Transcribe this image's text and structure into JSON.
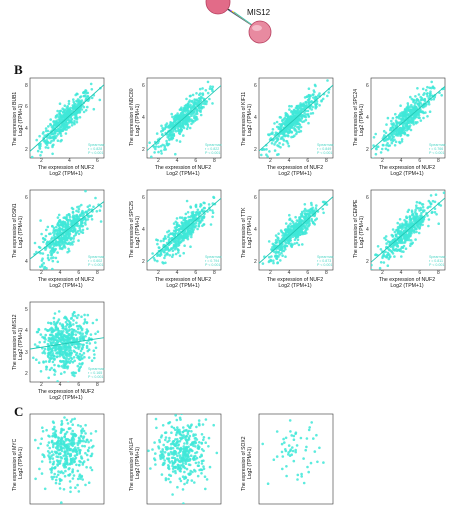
{
  "network": {
    "node_label": "MIS12",
    "edge_colors": [
      "#e040c0",
      "#00a0ff",
      "#60d040",
      "#202020",
      "#a040ff",
      "#ffe000",
      "#40c0c0"
    ]
  },
  "panel_b_letter": "B",
  "panel_c_letter": "C",
  "colors": {
    "points": "#3fe8d8",
    "fit": "#21c7b4",
    "axis": "#333333"
  },
  "plots_b": [
    {
      "id": "NUF2-BUB1",
      "ylabel1": "The expression of BUB1",
      "ylabel2": "Log2 (TPM+1)",
      "xlabel1": "The expression of NUF2",
      "xlabel2": "Log2 (TPM+1)",
      "yticks": [
        "2",
        "4",
        "6",
        "8"
      ],
      "xticks": [
        "2",
        "4",
        "6"
      ],
      "stat_lines": [
        "Spearman",
        "r = 0.828",
        "P < 0.001"
      ]
    },
    {
      "id": "NUF2-NDC80",
      "ylabel1": "The expression of NDC80",
      "ylabel2": "Log2 (TPM+1)",
      "xlabel1": "The expression of NUF2",
      "xlabel2": "Log2 (TPM+1)",
      "yticks": [
        "2",
        "4",
        "6"
      ],
      "xticks": [
        "2",
        "4",
        "6",
        "8"
      ],
      "stat_lines": [
        "Spearman",
        "r = 0.822",
        "P < 0.001"
      ]
    },
    {
      "id": "NUF2-KIF11",
      "ylabel1": "The expression of KIF11",
      "ylabel2": "Log2 (TPM+1)",
      "xlabel1": "The expression of NUF2",
      "xlabel2": "Log2 (TPM+1)",
      "yticks": [
        "2",
        "4",
        "6"
      ],
      "xticks": [
        "2",
        "4",
        "6",
        "8"
      ],
      "stat_lines": [
        "Spearman",
        "r = 0.849",
        "P < 0.001"
      ]
    },
    {
      "id": "NUF2-SPC24",
      "ylabel1": "The expression of SPC24",
      "ylabel2": "Log2 (TPM+1)",
      "xlabel1": "The expression of NUF2",
      "xlabel2": "Log2 (TPM+1)",
      "yticks": [
        "2",
        "4",
        "6"
      ],
      "xticks": [
        "2",
        "4",
        "6",
        "8"
      ],
      "stat_lines": [
        "Spearman",
        "r = 0.766",
        "P < 0.001"
      ]
    },
    {
      "id": "NUF2-DSN1",
      "ylabel1": "The expression of DSN1",
      "ylabel2": "Log2 (TPM+1)",
      "xlabel1": "The expression of NUF2",
      "xlabel2": "Log2 (TPM+1)",
      "yticks": [
        "4",
        "6"
      ],
      "xticks": [
        "2",
        "4",
        "6",
        "8"
      ],
      "stat_lines": [
        "Spearman",
        "r = 0.602",
        "P < 0.001"
      ]
    },
    {
      "id": "NUF2-SPC25",
      "ylabel1": "The expression of SPC25",
      "ylabel2": "Log2 (TPM+1)",
      "xlabel1": "The expression of NUF2",
      "xlabel2": "Log2 (TPM+1)",
      "yticks": [
        "2",
        "4",
        "6"
      ],
      "xticks": [
        "2",
        "4",
        "6",
        "8"
      ],
      "stat_lines": [
        "Spearman",
        "r = 0.794",
        "P < 0.001"
      ]
    },
    {
      "id": "NUF2-TTK",
      "ylabel1": "The expression of TTK",
      "ylabel2": "Log2 (TPM+1)",
      "xlabel1": "The expression of NUF2",
      "xlabel2": "Log2 (TPM+1)",
      "yticks": [
        "2",
        "4",
        "6"
      ],
      "xticks": [
        "2",
        "4",
        "6",
        "8"
      ],
      "stat_lines": [
        "Spearman",
        "r = 0.873",
        "P < 0.001"
      ]
    },
    {
      "id": "NUF2-CENPE",
      "ylabel1": "The expression of CENPE",
      "ylabel2": "Log2 (TPM+1)",
      "xlabel1": "The expression of NUF2",
      "xlabel2": "Log2 (TPM+1)",
      "yticks": [
        "2",
        "4",
        "6"
      ],
      "xticks": [
        "2",
        "4",
        "6",
        "8"
      ],
      "stat_lines": [
        "Spearman",
        "r = 0.811",
        "P < 0.001"
      ]
    },
    {
      "id": "NUF2-MIS12",
      "ylabel1": "The expression of MIS12",
      "ylabel2": "Log2 (TPM+1)",
      "xlabel1": "The expression of NUF2",
      "xlabel2": "Log2 (TPM+1)",
      "yticks": [
        "2",
        "3",
        "4",
        "5"
      ],
      "xticks": [
        "2",
        "4",
        "6",
        "8"
      ],
      "stat_lines": [
        "Spearman",
        "r = 0.165",
        "P < 0.001"
      ]
    }
  ],
  "plots_c": [
    {
      "id": "NUF2-MYC",
      "ylabel1": "The expression of MYC",
      "ylabel2": "Log2 (TPM+1)"
    },
    {
      "id": "NUF2-KLF4",
      "ylabel1": "The expression of KLF4",
      "ylabel2": "Log2 (TPM+1)"
    },
    {
      "id": "NUF2-SOX2",
      "ylabel1": "The expression of SOX2",
      "ylabel2": "Log2 (TPM+1)"
    }
  ]
}
